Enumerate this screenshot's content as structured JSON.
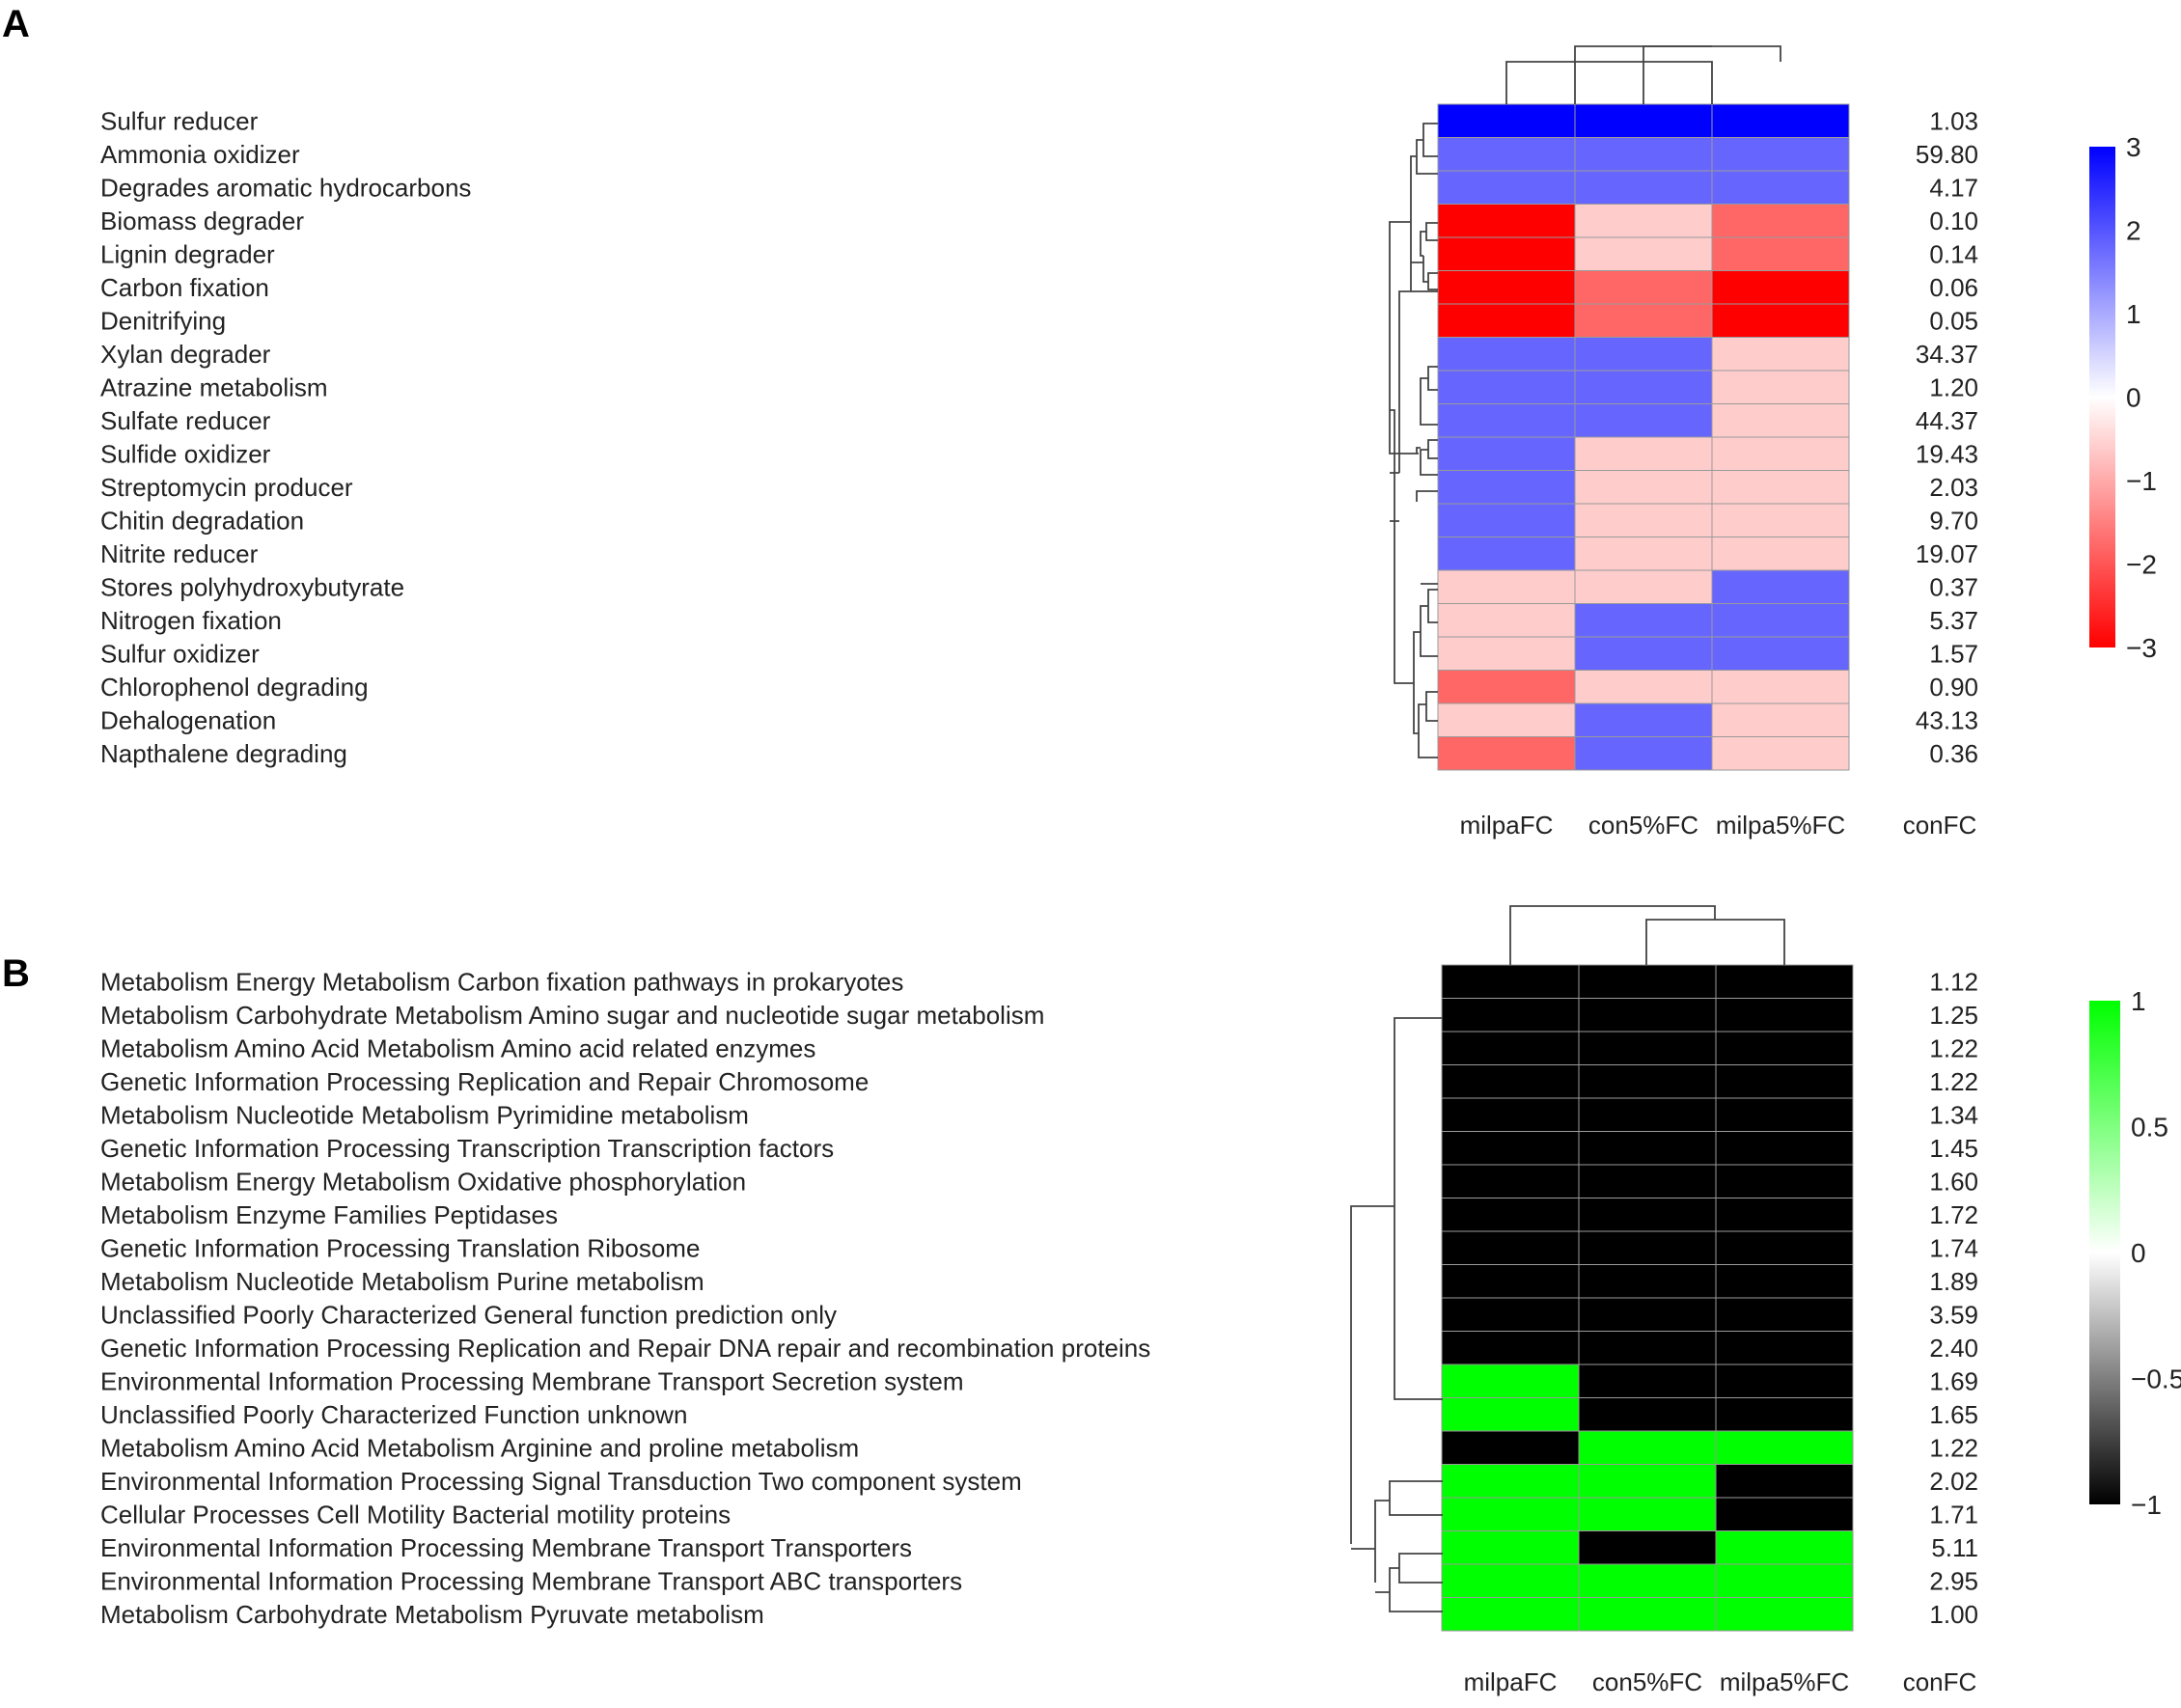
{
  "chart_data": [
    {
      "type": "heatmap",
      "panel_label": "A",
      "rows": [
        "Sulfur reducer",
        "Ammonia oxidizer",
        "Degrades aromatic hydrocarbons",
        "Biomass degrader",
        "Lignin degrader",
        "Carbon fixation",
        "Denitrifying",
        "Xylan degrader",
        "Atrazine metabolism",
        "Sulfate reducer",
        "Sulfide oxidizer",
        "Streptomycin producer",
        "Chitin degradation",
        "Nitrite reducer",
        "Stores polyhydroxybutyrate",
        "Nitrogen fixation",
        "Sulfur oxidizer",
        "Chlorophenol degrading",
        "Dehalogenation",
        "Napthalene degrading"
      ],
      "columns": [
        "milpaFC",
        "con5%FC",
        "milpa5%FC"
      ],
      "values": [
        [
          3,
          3,
          3
        ],
        [
          1.8,
          1.8,
          1.8
        ],
        [
          1.8,
          1.8,
          1.8
        ],
        [
          -3,
          -0.6,
          -1.8
        ],
        [
          -3,
          -0.6,
          -1.8
        ],
        [
          -3,
          -1.8,
          -3
        ],
        [
          -3,
          -1.8,
          -3
        ],
        [
          1.8,
          1.8,
          -0.6
        ],
        [
          1.8,
          1.8,
          -0.6
        ],
        [
          1.8,
          1.8,
          -0.6
        ],
        [
          1.8,
          -0.6,
          -0.6
        ],
        [
          1.8,
          -0.6,
          -0.6
        ],
        [
          1.8,
          -0.6,
          -0.6
        ],
        [
          1.8,
          -0.6,
          -0.6
        ],
        [
          -0.6,
          -0.6,
          1.8
        ],
        [
          -0.6,
          1.8,
          1.8
        ],
        [
          -0.6,
          1.8,
          1.8
        ],
        [
          -1.8,
          -0.6,
          -0.6
        ],
        [
          -0.6,
          1.8,
          -0.6
        ],
        [
          -1.8,
          1.8,
          -0.6
        ]
      ],
      "extra_column": {
        "label": "conFC",
        "values": [
          "1.03",
          "59.80",
          "4.17",
          "0.10",
          "0.14",
          "0.06",
          "0.05",
          "34.37",
          "1.20",
          "44.37",
          "19.43",
          "2.03",
          "9.70",
          "19.07",
          "0.37",
          "5.37",
          "1.57",
          "0.90",
          "43.13",
          "0.36"
        ]
      },
      "color_scale": {
        "min": -3,
        "max": 3,
        "ticks": [
          "3",
          "2",
          "1",
          "0",
          "−1",
          "−2",
          "−3"
        ],
        "low_color": "#ff0000",
        "mid_color": "#ffffff",
        "high_color": "#0000ff"
      }
    },
    {
      "type": "heatmap",
      "panel_label": "B",
      "rows": [
        "Metabolism Energy Metabolism Carbon fixation pathways in prokaryotes",
        "Metabolism Carbohydrate Metabolism Amino sugar and nucleotide sugar metabolism",
        "Metabolism Amino Acid Metabolism Amino acid related enzymes",
        "Genetic Information Processing Replication and Repair Chromosome",
        "Metabolism Nucleotide Metabolism Pyrimidine metabolism",
        "Genetic Information Processing Transcription Transcription factors",
        "Metabolism Energy Metabolism Oxidative phosphorylation",
        "Metabolism Enzyme Families Peptidases",
        "Genetic Information Processing Translation Ribosome",
        "Metabolism Nucleotide Metabolism Purine metabolism",
        "Unclassified Poorly Characterized General function prediction only",
        "Genetic Information Processing Replication and Repair DNA repair and recombination proteins",
        "Environmental Information Processing Membrane Transport Secretion system",
        "Unclassified Poorly Characterized Function unknown",
        "Metabolism Amino Acid Metabolism Arginine and proline metabolism",
        "Environmental Information Processing Signal Transduction Two component system",
        "Cellular Processes Cell Motility Bacterial motility proteins",
        "Environmental Information Processing Membrane Transport Transporters",
        "Environmental Information Processing Membrane Transport ABC transporters",
        "Metabolism Carbohydrate Metabolism Pyruvate metabolism"
      ],
      "columns": [
        "milpaFC",
        "con5%FC",
        "milpa5%FC"
      ],
      "values": [
        [
          -1,
          -1,
          -1
        ],
        [
          -1,
          -1,
          -1
        ],
        [
          -1,
          -1,
          -1
        ],
        [
          -1,
          -1,
          -1
        ],
        [
          -1,
          -1,
          -1
        ],
        [
          -1,
          -1,
          -1
        ],
        [
          -1,
          -1,
          -1
        ],
        [
          -1,
          -1,
          -1
        ],
        [
          -1,
          -1,
          -1
        ],
        [
          -1,
          -1,
          -1
        ],
        [
          -1,
          -1,
          -1
        ],
        [
          -1,
          -1,
          -1
        ],
        [
          1,
          -1,
          -1
        ],
        [
          1,
          -1,
          -1
        ],
        [
          -1,
          1,
          1
        ],
        [
          1,
          1,
          -1
        ],
        [
          1,
          1,
          -1
        ],
        [
          1,
          -1,
          1
        ],
        [
          1,
          1,
          1
        ],
        [
          1,
          1,
          1
        ]
      ],
      "extra_column": {
        "label": "conFC",
        "values": [
          "1.12",
          "1.25",
          "1.22",
          "1.22",
          "1.34",
          "1.45",
          "1.60",
          "1.72",
          "1.74",
          "1.89",
          "3.59",
          "2.40",
          "1.69",
          "1.65",
          "1.22",
          "2.02",
          "1.71",
          "5.11",
          "2.95",
          "1.00"
        ]
      },
      "color_scale": {
        "min": -1,
        "max": 1,
        "ticks": [
          "1",
          "0.5",
          "0",
          "−0.5",
          "−1"
        ],
        "low_color": "#000000",
        "mid_color": "#ffffff",
        "high_color": "#00ff00"
      }
    }
  ]
}
